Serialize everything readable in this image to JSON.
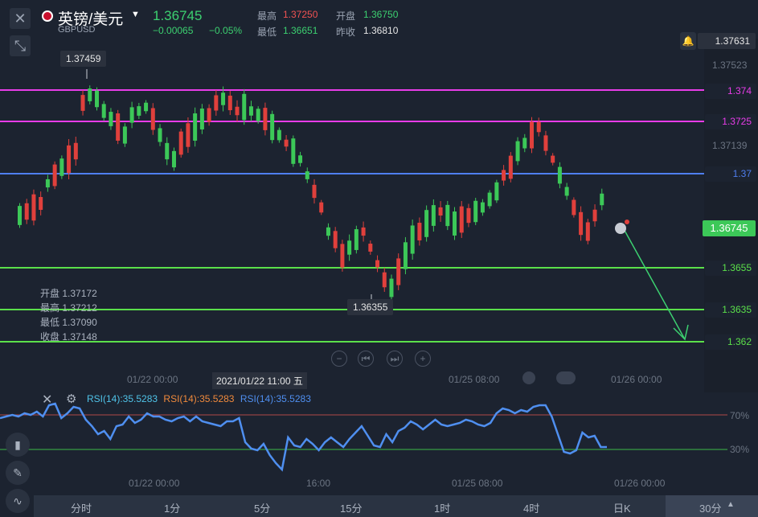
{
  "header": {
    "close": "✕",
    "expand": "⤡",
    "symbol_name": "英镑/美元",
    "symbol_code": "GBPUSD",
    "last_price": "1.36745",
    "change": "−0.00065",
    "change_pct": "−0.05%",
    "high_label": "最高",
    "high_value": "1.37250",
    "open_label": "开盘",
    "open_value": "1.36750",
    "low_label": "最低",
    "low_value": "1.36651",
    "prev_label": "昨收",
    "prev_value": "1.36810"
  },
  "price_axis": {
    "top_price": "1.37631",
    "labels": [
      "1.37523",
      "1.37139"
    ],
    "current": "1.36745"
  },
  "hlines": [
    {
      "label": "1.374",
      "color": "#e83ce8"
    },
    {
      "label": "1.3725",
      "color": "#e83ce8"
    },
    {
      "label": "1.37",
      "color": "#4f7ff0"
    },
    {
      "label": "1.3655",
      "color": "#5be04a"
    },
    {
      "label": "1.3635",
      "color": "#5be04a"
    },
    {
      "label": "1.362",
      "color": "#5be04a"
    }
  ],
  "annotations": {
    "high_mark": "1.37459",
    "low_mark": "1.36355",
    "crosshair_time": "2021/01/22 11:00 五",
    "ohlc": [
      {
        "label": "开盘",
        "value": "1.37172"
      },
      {
        "label": "最高",
        "value": "1.37212"
      },
      {
        "label": "最低",
        "value": "1.37090"
      },
      {
        "label": "收盘",
        "value": "1.37148"
      }
    ]
  },
  "time_axis": [
    "01/22 00:00",
    "01/25 08:00",
    "01/26 00:00"
  ],
  "rsi": {
    "legend": [
      "RSI(14):35.5283",
      "RSI(14):35.5283",
      "RSI(14):35.5283"
    ],
    "legend_colors": [
      "#4fc3e8",
      "#f08a3c",
      "#4f8ff0"
    ],
    "level_high": "70%",
    "level_low": "30%",
    "time_axis": [
      "01/22 00:00",
      "16:00",
      "01/25 08:00",
      "01/26 00:00"
    ]
  },
  "timeframes": [
    "分时",
    "1分",
    "5分",
    "15分",
    "1时",
    "4时",
    "日K",
    "30分"
  ],
  "timeframe_selected": "30分"
}
